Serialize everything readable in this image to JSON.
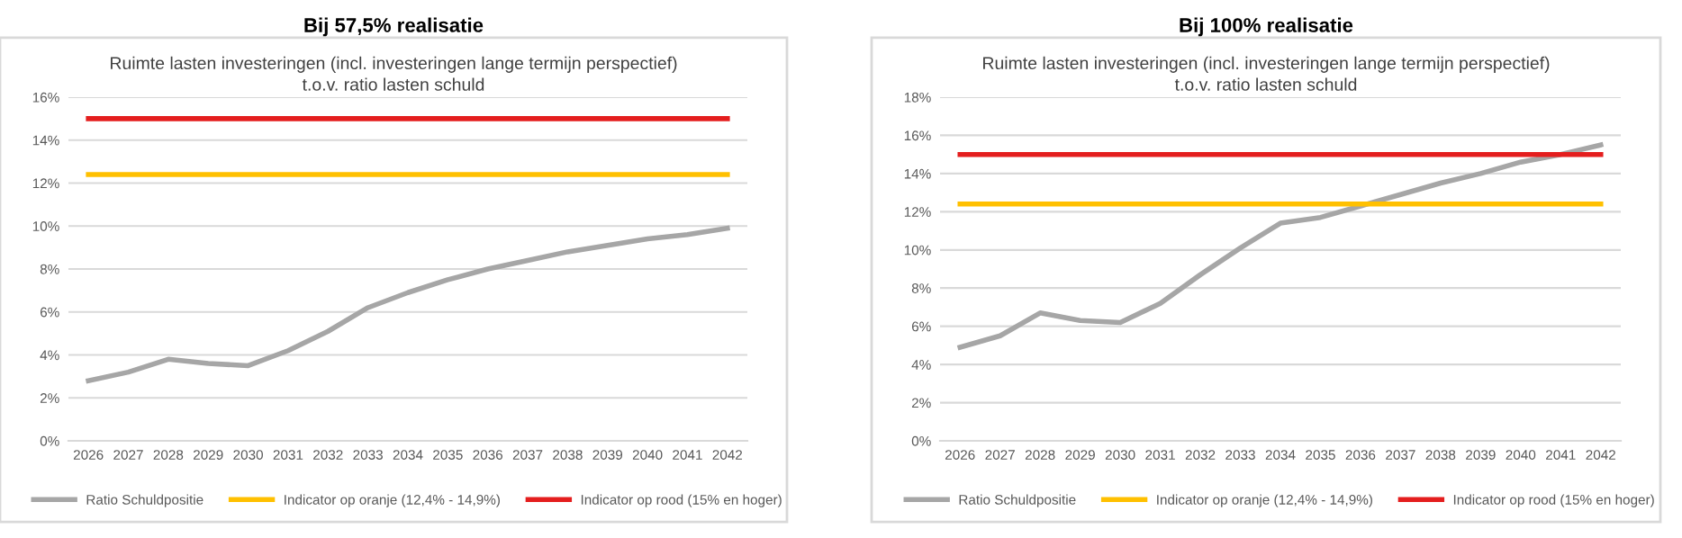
{
  "chart_data": [
    {
      "type": "line",
      "title": "Bij 57,5% realisatie",
      "subtitle": "Ruimte lasten investeringen (incl. investeringen lange termijn perspectief)\nt.o.v. ratio lasten schuld",
      "categories": [
        "2026",
        "2027",
        "2028",
        "2029",
        "2030",
        "2031",
        "2032",
        "2033",
        "2034",
        "2035",
        "2036",
        "2037",
        "2038",
        "2039",
        "2040",
        "2041",
        "2042"
      ],
      "series": [
        {
          "name": "Ratio Schuldpositie",
          "color": "#a6a6a6",
          "values": [
            2.8,
            3.2,
            3.8,
            3.6,
            3.5,
            4.2,
            5.1,
            6.2,
            6.9,
            7.5,
            8.0,
            8.4,
            8.8,
            9.1,
            9.4,
            9.6,
            9.9
          ]
        },
        {
          "name": "Indicator op oranje (12,4% - 14,9%)",
          "color": "#ffc000",
          "values": [
            12.4,
            12.4,
            12.4,
            12.4,
            12.4,
            12.4,
            12.4,
            12.4,
            12.4,
            12.4,
            12.4,
            12.4,
            12.4,
            12.4,
            12.4,
            12.4,
            12.4
          ]
        },
        {
          "name": "Indicator op rood (15% en hoger)",
          "color": "#e41e1e",
          "values": [
            15,
            15,
            15,
            15,
            15,
            15,
            15,
            15,
            15,
            15,
            15,
            15,
            15,
            15,
            15,
            15,
            15
          ]
        }
      ],
      "ylim": [
        0,
        16
      ],
      "yticks": [
        {
          "value": 0,
          "label": "0%"
        },
        {
          "value": 2,
          "label": "2%"
        },
        {
          "value": 4,
          "label": "4%"
        },
        {
          "value": 6,
          "label": "6%"
        },
        {
          "value": 8,
          "label": "8%"
        },
        {
          "value": 10,
          "label": "10%"
        },
        {
          "value": 12,
          "label": "12%"
        },
        {
          "value": 14,
          "label": "14%"
        },
        {
          "value": 16,
          "label": "16%"
        }
      ],
      "grid": "y",
      "legend": "bottom",
      "marker": "none",
      "line_style": "solid"
    },
    {
      "type": "line",
      "title": "Bij 100% realisatie",
      "subtitle": "Ruimte lasten investeringen (incl. investeringen lange termijn perspectief)\nt.o.v. ratio lasten schuld",
      "categories": [
        "2026",
        "2027",
        "2028",
        "2029",
        "2030",
        "2031",
        "2032",
        "2033",
        "2034",
        "2035",
        "2036",
        "2037",
        "2038",
        "2039",
        "2040",
        "2041",
        "2042"
      ],
      "series": [
        {
          "name": "Ratio Schuldpositie",
          "color": "#a6a6a6",
          "values": [
            4.9,
            5.5,
            6.7,
            6.3,
            6.2,
            7.2,
            8.7,
            10.1,
            11.4,
            11.7,
            12.3,
            12.9,
            13.5,
            14.0,
            14.6,
            15.0,
            15.5
          ]
        },
        {
          "name": "Indicator op oranje (12,4% - 14,9%)",
          "color": "#ffc000",
          "values": [
            12.4,
            12.4,
            12.4,
            12.4,
            12.4,
            12.4,
            12.4,
            12.4,
            12.4,
            12.4,
            12.4,
            12.4,
            12.4,
            12.4,
            12.4,
            12.4,
            12.4
          ]
        },
        {
          "name": "Indicator op rood (15% en hoger)",
          "color": "#e41e1e",
          "values": [
            15,
            15,
            15,
            15,
            15,
            15,
            15,
            15,
            15,
            15,
            15,
            15,
            15,
            15,
            15,
            15,
            15
          ]
        }
      ],
      "ylim": [
        0,
        18
      ],
      "yticks": [
        {
          "value": 0,
          "label": "0%"
        },
        {
          "value": 2,
          "label": "2%"
        },
        {
          "value": 4,
          "label": "4%"
        },
        {
          "value": 6,
          "label": "6%"
        },
        {
          "value": 8,
          "label": "8%"
        },
        {
          "value": 10,
          "label": "10%"
        },
        {
          "value": 12,
          "label": "12%"
        },
        {
          "value": 14,
          "label": "14%"
        },
        {
          "value": 16,
          "label": "16%"
        },
        {
          "value": 18,
          "label": "18%"
        }
      ],
      "grid": "y",
      "legend": "bottom",
      "marker": "none",
      "line_style": "solid"
    }
  ]
}
